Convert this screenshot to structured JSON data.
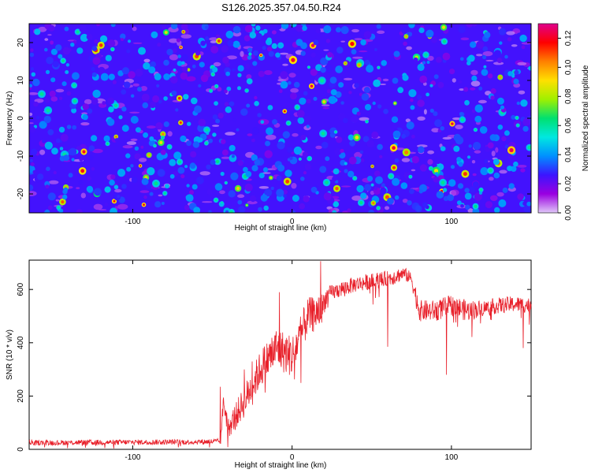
{
  "title": "S126.2025.357.04.50.R24",
  "chart_data": [
    {
      "type": "heatmap",
      "xlabel": "Height of straight line (km)",
      "ylabel": "Frequency (Hz)",
      "xlim": [
        -165,
        150
      ],
      "ylim": [
        -25,
        25
      ],
      "x_ticks": [
        -100,
        0,
        100
      ],
      "y_ticks": [
        -20,
        -10,
        0,
        10,
        20
      ],
      "colorbar": {
        "label": "Normalized spectral amplitude",
        "range": [
          0,
          0.13
        ],
        "ticks": [
          "0.00",
          "0.02",
          "0.04",
          "0.06",
          "0.08",
          "0.10",
          "0.12"
        ],
        "ticks_num": [
          0,
          0.02,
          0.04,
          0.06,
          0.08,
          0.1,
          0.12
        ],
        "colormap": [
          "#e0c8f8",
          "#9a00e0",
          "#3c14ff",
          "#0090ff",
          "#00e8e0",
          "#00e070",
          "#a0f000",
          "#ffe000",
          "#ff8000",
          "#ff0000",
          "#e0008c"
        ]
      },
      "field": {
        "background_mean": 0.025,
        "spot_count": 900,
        "spot_mean": 0.045,
        "note": "dense noise field of small spots: mostly blue/cyan/green, scattered yellow/red peaks up to ~0.12"
      }
    },
    {
      "type": "line",
      "xlabel": "Height of straight line (km)",
      "ylabel": "SNR (10 * v/v)",
      "xlim": [
        -165,
        150
      ],
      "ylim": [
        0,
        710
      ],
      "x_ticks": [
        -100,
        0,
        100
      ],
      "y_ticks": [
        0,
        200,
        400,
        600
      ],
      "series_color": "#e8202a",
      "series": [
        {
          "name": "SNR",
          "x": [
            -165,
            -60,
            -45,
            -43,
            -40,
            -35,
            -30,
            -20,
            -10,
            0,
            10,
            18,
            22,
            30,
            40,
            50,
            60,
            65,
            70,
            75,
            77,
            80,
            90,
            100,
            110,
            120,
            130,
            140,
            150
          ],
          "y": [
            25,
            28,
            30,
            180,
            80,
            130,
            180,
            300,
            380,
            350,
            500,
            520,
            580,
            600,
            620,
            630,
            640,
            650,
            660,
            640,
            590,
            520,
            520,
            540,
            520,
            530,
            540,
            545,
            540
          ],
          "noise": [
            10,
            10,
            10,
            40,
            40,
            50,
            60,
            70,
            80,
            80,
            70,
            60,
            30,
            30,
            30,
            30,
            30,
            30,
            25,
            25,
            40,
            40,
            40,
            40,
            40,
            30,
            30,
            30,
            30
          ]
        }
      ],
      "spikes": [
        {
          "x": -45,
          "y": 235
        },
        {
          "x": -30,
          "y": 300
        },
        {
          "x": -25,
          "y": 330
        },
        {
          "x": -18,
          "y": 380
        },
        {
          "x": -8,
          "y": 590
        },
        {
          "x": 5,
          "y": 470
        },
        {
          "x": 18,
          "y": 706
        },
        {
          "x": 60,
          "y": 385
        },
        {
          "x": 97,
          "y": 280
        },
        {
          "x": 145,
          "y": 380
        }
      ]
    }
  ]
}
